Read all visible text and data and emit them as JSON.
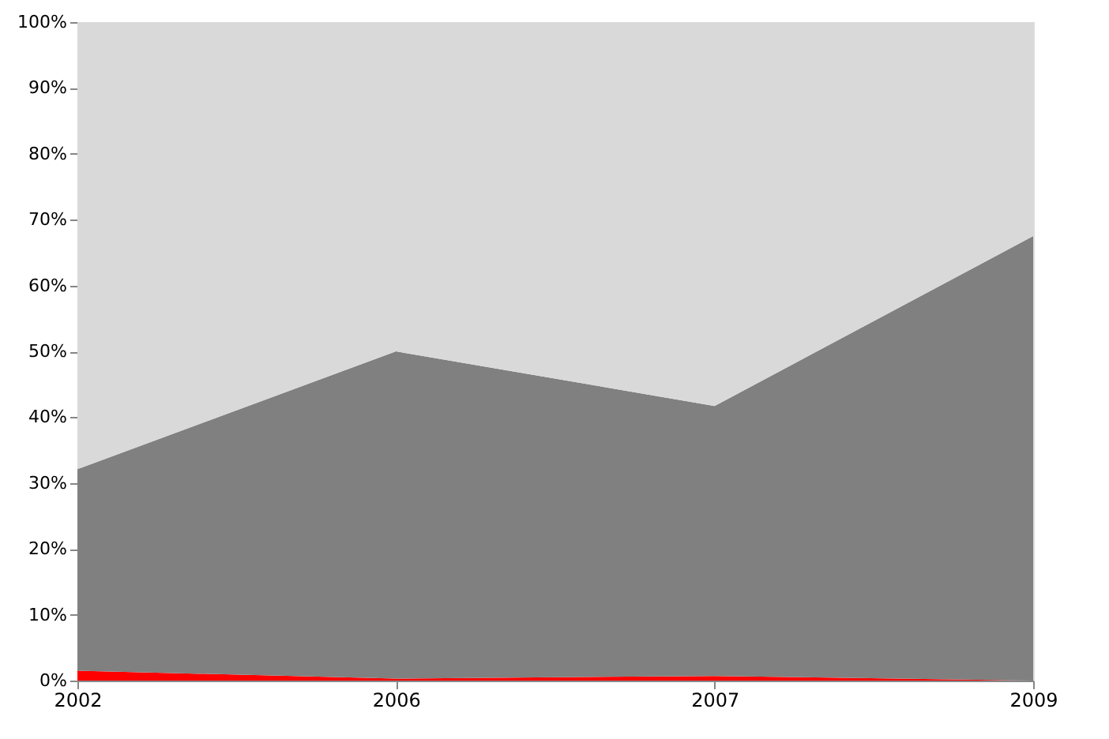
{
  "chart_data": {
    "type": "area",
    "stacked": true,
    "categories": [
      "2002",
      "2006",
      "2007",
      "2009"
    ],
    "series": [
      {
        "color": "#ff0000",
        "values": [
          1.5,
          0.3,
          0.7,
          0
        ]
      },
      {
        "color": "#808080",
        "values": [
          30.6,
          49.7,
          41.0,
          67.5
        ]
      },
      {
        "color": "#d9d9d9",
        "values": [
          67.9,
          50.0,
          58.3,
          32.5
        ]
      }
    ],
    "ylim": [
      0,
      100
    ],
    "yticks": [
      {
        "value": 0,
        "label": "0%"
      },
      {
        "value": 10,
        "label": "10%"
      },
      {
        "value": 20,
        "label": "20%"
      },
      {
        "value": 30,
        "label": "30%"
      },
      {
        "value": 40,
        "label": "40%"
      },
      {
        "value": 50,
        "label": "50%"
      },
      {
        "value": 60,
        "label": "60%"
      },
      {
        "value": 70,
        "label": "70%"
      },
      {
        "value": 80,
        "label": "80%"
      },
      {
        "value": 90,
        "label": "90%"
      },
      {
        "value": 100,
        "label": "100%"
      }
    ],
    "grid": false
  }
}
